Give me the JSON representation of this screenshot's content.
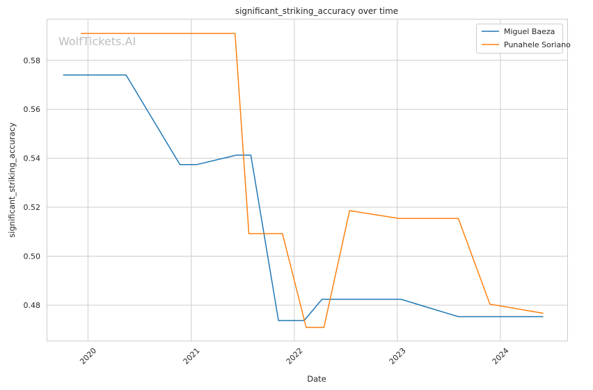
{
  "chart_data": {
    "type": "line",
    "title": "significant_striking_accuracy over time",
    "xlabel": "Date",
    "ylabel": "significant_striking_accuracy",
    "watermark": "WolfTickets.AI",
    "x_ticks": [
      "2020",
      "2021",
      "2022",
      "2023",
      "2024"
    ],
    "y_ticks": [
      "0.48",
      "0.50",
      "0.52",
      "0.54",
      "0.56",
      "0.58"
    ],
    "xlim": [
      "2019-08-10",
      "2024-08-25"
    ],
    "ylim": [
      0.4655,
      0.5967
    ],
    "grid": true,
    "legend_position": "top-right",
    "series": [
      {
        "name": "Miguel Baeza",
        "color": "#1f77b4",
        "x": [
          "2019-10-05",
          "2020-05-15",
          "2020-11-22",
          "2021-01-20",
          "2021-06-10",
          "2021-07-31",
          "2021-11-06",
          "2022-02-05",
          "2022-04-09",
          "2023-01-14",
          "2023-08-05",
          "2024-06-01"
        ],
        "y": [
          0.574,
          0.574,
          0.5374,
          0.5374,
          0.5413,
          0.5413,
          0.4737,
          0.4737,
          0.4824,
          0.4824,
          0.4753,
          0.4753
        ]
      },
      {
        "name": "Punahele Soriano",
        "color": "#ff7f0e",
        "x": [
          "2019-12-07",
          "2021-06-05",
          "2021-07-24",
          "2021-11-20",
          "2022-02-12",
          "2022-04-16",
          "2022-07-16",
          "2023-01-07",
          "2023-08-05",
          "2023-11-25",
          "2024-06-01"
        ],
        "y": [
          0.591,
          0.591,
          0.5092,
          0.5092,
          0.4709,
          0.4709,
          0.5186,
          0.5154,
          0.5154,
          0.4804,
          0.4767
        ]
      }
    ]
  }
}
